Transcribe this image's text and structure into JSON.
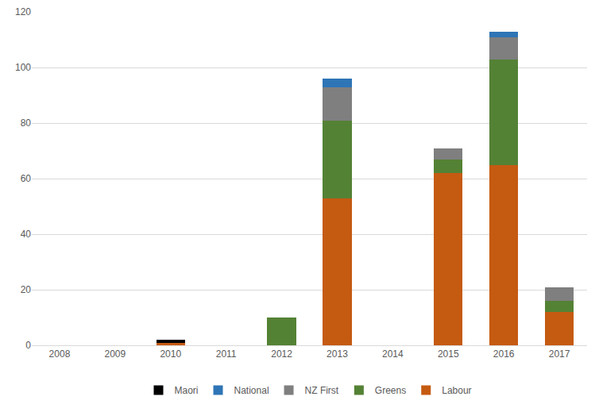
{
  "chart_data": {
    "type": "bar",
    "stacked": true,
    "grid": true,
    "legend": "bottom",
    "categories": [
      "2008",
      "2009",
      "2010",
      "2011",
      "2012",
      "2013",
      "2014",
      "2015",
      "2016",
      "2017"
    ],
    "ylim": [
      0,
      120
    ],
    "yticks": [
      0,
      20,
      40,
      60,
      80,
      100,
      120
    ],
    "series": [
      {
        "name": "Labour",
        "color": "#C55A11",
        "values": [
          0,
          0,
          1,
          0,
          0,
          53,
          0,
          62,
          65,
          12
        ]
      },
      {
        "name": "Greens",
        "color": "#548235",
        "values": [
          0,
          0,
          0,
          0,
          10,
          28,
          0,
          5,
          38,
          4
        ]
      },
      {
        "name": "NZ First",
        "color": "#7F7F7F",
        "values": [
          0,
          0,
          0,
          0,
          0,
          12,
          0,
          4,
          8,
          5
        ]
      },
      {
        "name": "National",
        "color": "#2E75B6",
        "values": [
          0,
          0,
          0,
          0,
          0,
          3,
          0,
          0,
          2,
          0
        ]
      },
      {
        "name": "Maori",
        "color": "#000000",
        "values": [
          0,
          0,
          1,
          0,
          0,
          0,
          0,
          0,
          0,
          0
        ]
      }
    ]
  }
}
